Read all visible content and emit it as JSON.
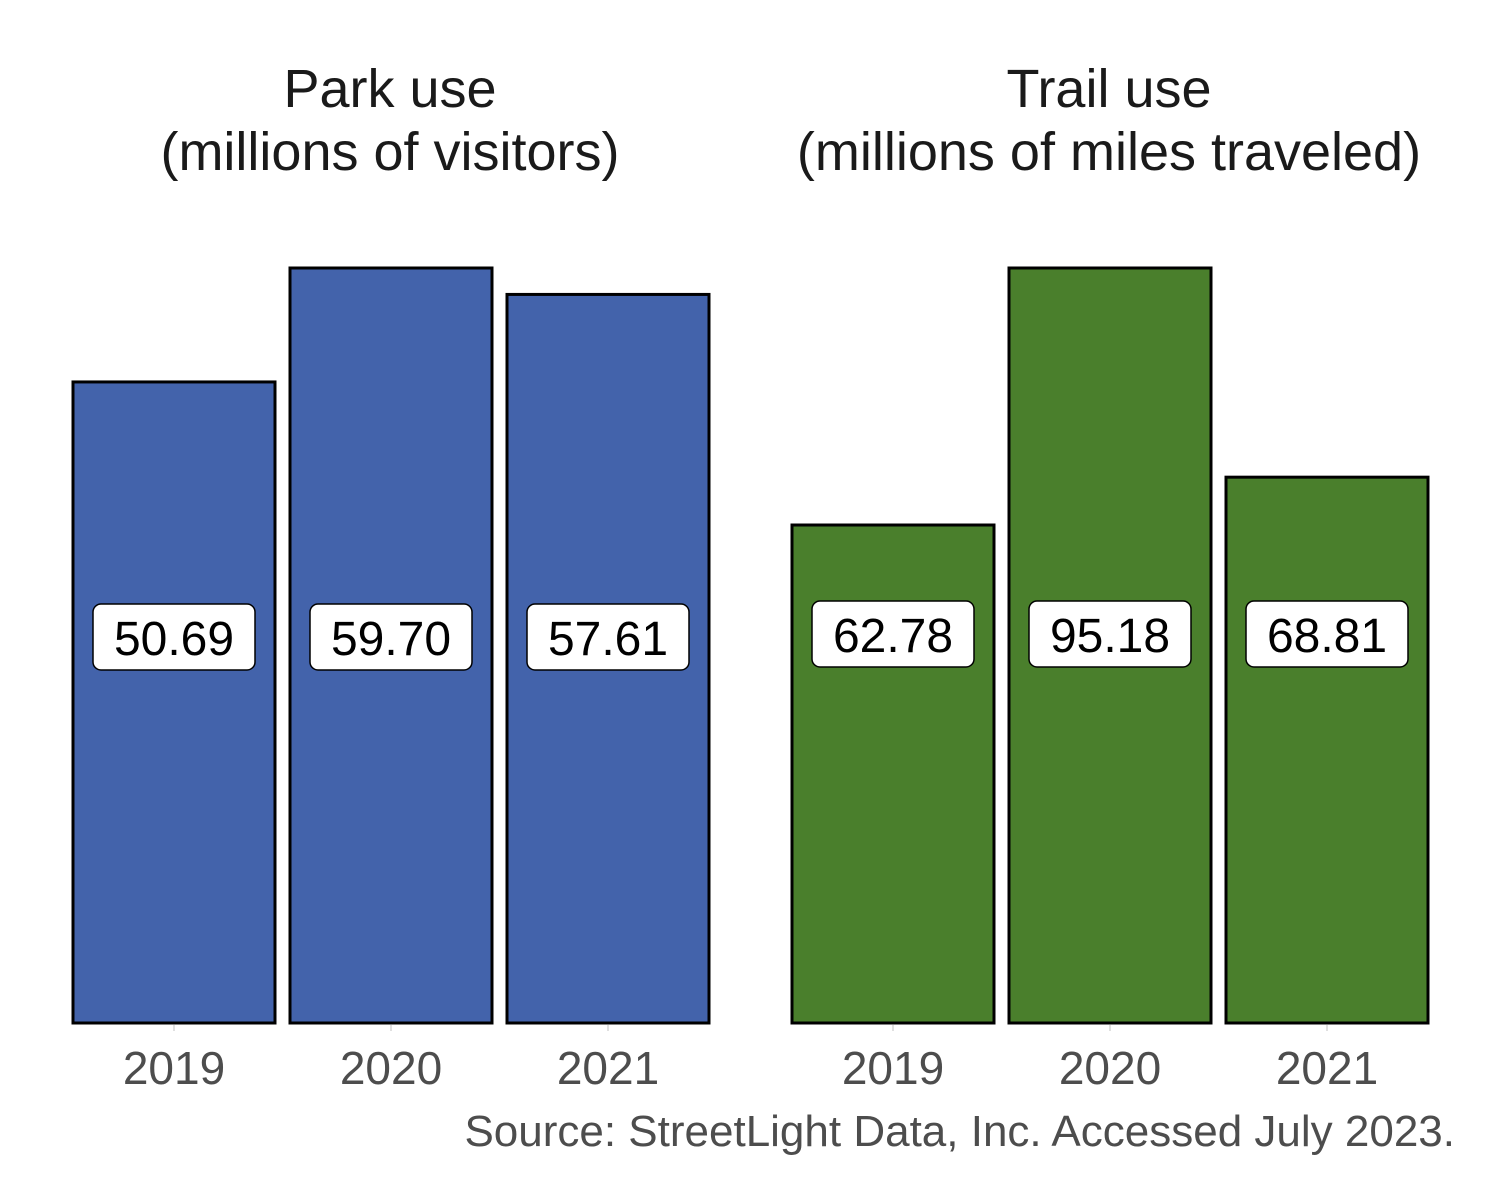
{
  "chart_data": [
    {
      "type": "bar",
      "title_lines": [
        "Park use",
        "(millions of visitors)"
      ],
      "categories": [
        "2019",
        "2020",
        "2021"
      ],
      "values": [
        50.69,
        59.7,
        57.61
      ],
      "labels": [
        "50.69",
        "59.70",
        "57.61"
      ],
      "ylim": [
        0,
        59.7
      ],
      "color": "#4363AB",
      "grid": false,
      "legend": "none"
    },
    {
      "type": "bar",
      "title_lines": [
        "Trail use",
        "(millions of miles traveled)"
      ],
      "categories": [
        "2019",
        "2020",
        "2021"
      ],
      "values": [
        62.78,
        95.18,
        68.81
      ],
      "labels": [
        "62.78",
        "95.18",
        "68.81"
      ],
      "ylim": [
        0,
        95.18
      ],
      "color": "#4A7F2C",
      "grid": false,
      "legend": "none"
    }
  ],
  "caption": "Source: StreetLight Data, Inc. Accessed July 2023."
}
